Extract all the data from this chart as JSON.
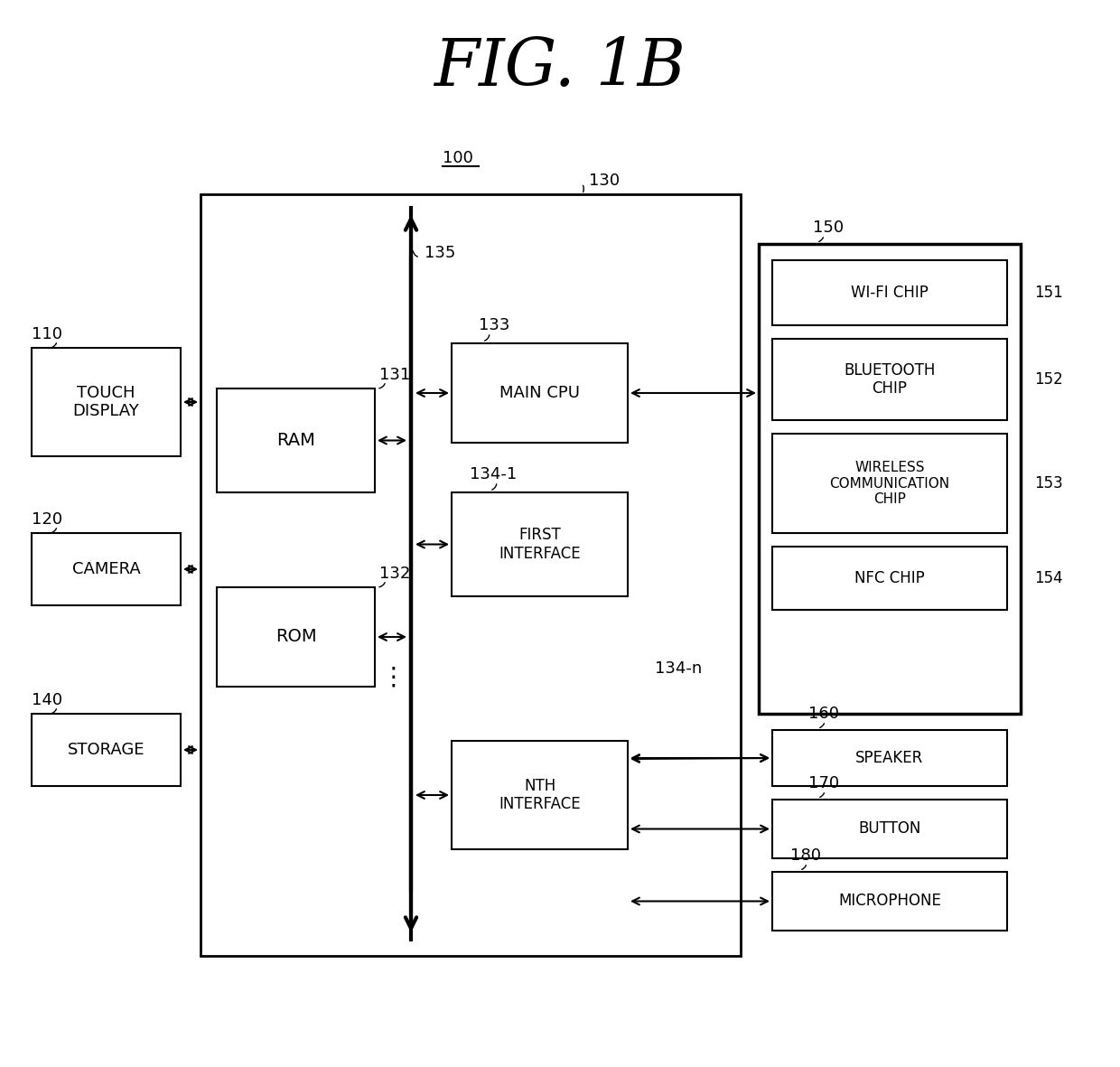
{
  "title": "FIG. 1B",
  "boxes": {
    "touch_display": {
      "text": "TOUCH\nDISPLAY",
      "fs": 13
    },
    "camera": {
      "text": "CAMERA",
      "fs": 13
    },
    "storage": {
      "text": "STORAGE",
      "fs": 13
    },
    "ram": {
      "text": "RAM",
      "fs": 13
    },
    "rom": {
      "text": "ROM",
      "fs": 13
    },
    "main_cpu": {
      "text": "MAIN CPU",
      "fs": 13
    },
    "first_interface": {
      "text": "FIRST\nINTERFACE",
      "fs": 12
    },
    "nth_interface": {
      "text": "NTH\nINTERFACE",
      "fs": 12
    },
    "wifi": {
      "text": "WI-FI CHIP",
      "fs": 12
    },
    "bluetooth": {
      "text": "BLUETOOTH\nCHIP",
      "fs": 12
    },
    "wireless": {
      "text": "WIRELESS\nCOMMUNICATION\nCHIP",
      "fs": 11
    },
    "nfc": {
      "text": "NFC CHIP",
      "fs": 12
    },
    "speaker": {
      "text": "SPEAKER",
      "fs": 12
    },
    "button": {
      "text": "BUTTON",
      "fs": 12
    },
    "microphone": {
      "text": "MICROPHONE",
      "fs": 12
    }
  },
  "labels": {
    "100": "100",
    "130": "130",
    "135": "135",
    "110": "110",
    "120": "120",
    "140": "140",
    "131": "131",
    "132": "132",
    "133": "133",
    "134_1": "134-1",
    "134_n": "134-n",
    "150": "150",
    "151": "151",
    "152": "152",
    "153": "153",
    "154": "154",
    "160": "160",
    "170": "170",
    "180": "180"
  }
}
